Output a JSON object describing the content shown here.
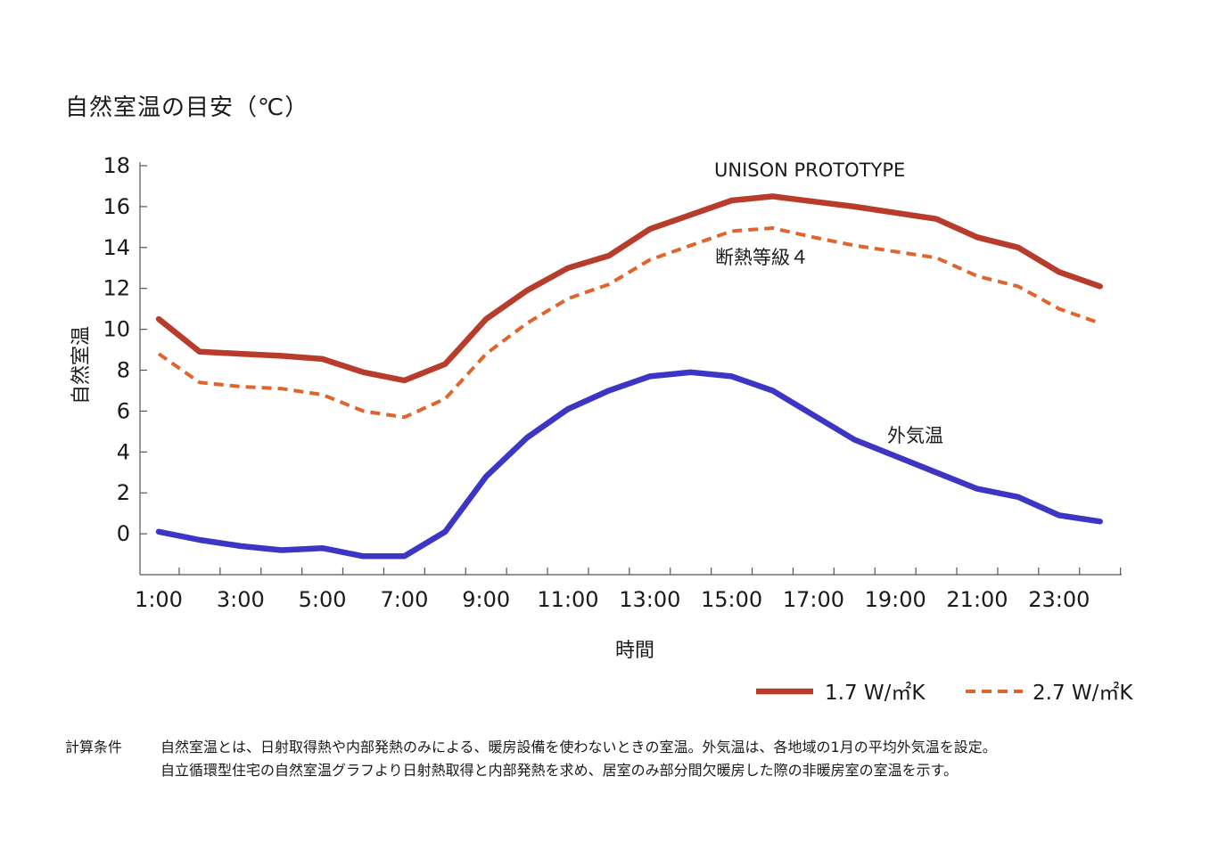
{
  "chart_data": {
    "type": "line",
    "title": "自然室温の目安（℃）",
    "ylabel": "自然室温",
    "xlabel": "時間",
    "ylim": [
      -2,
      18
    ],
    "yticks": [
      18,
      16,
      14,
      12,
      10,
      8,
      6,
      4,
      2,
      0
    ],
    "x": [
      "1:00",
      "2:00",
      "3:00",
      "4:00",
      "5:00",
      "6:00",
      "7:00",
      "8:00",
      "9:00",
      "10:00",
      "11:00",
      "12:00",
      "13:00",
      "14:00",
      "15:00",
      "16:00",
      "17:00",
      "18:00",
      "19:00",
      "20:00",
      "21:00",
      "22:00",
      "23:00",
      "24:00"
    ],
    "xtick_labels": [
      "1:00",
      "3:00",
      "5:00",
      "7:00",
      "9:00",
      "11:00",
      "13:00",
      "15:00",
      "17:00",
      "19:00",
      "21:00",
      "23:00"
    ],
    "series": [
      {
        "name": "1.7 W/㎡K",
        "annotation": "UNISON PROTOTYPE",
        "color": "#b83c2c",
        "style": "solid",
        "values": [
          10.5,
          8.9,
          8.8,
          8.7,
          8.55,
          7.9,
          7.5,
          8.3,
          10.5,
          11.9,
          13.0,
          13.6,
          14.9,
          15.6,
          16.3,
          16.5,
          16.25,
          16.0,
          15.7,
          15.4,
          14.5,
          14.0,
          12.8,
          12.1
        ]
      },
      {
        "name": "2.7 W/㎡K",
        "annotation": "断熱等級４",
        "color": "#e0642c",
        "style": "dashed",
        "values": [
          8.8,
          7.4,
          7.2,
          7.1,
          6.8,
          6.0,
          5.7,
          6.6,
          8.8,
          10.3,
          11.5,
          12.2,
          13.4,
          14.1,
          14.8,
          14.95,
          14.5,
          14.1,
          13.8,
          13.5,
          12.6,
          12.1,
          11.0,
          10.3
        ]
      },
      {
        "annotation": "外気温",
        "color": "#3d36c4",
        "style": "solid",
        "values": [
          0.1,
          -0.3,
          -0.6,
          -0.8,
          -0.7,
          -1.1,
          -1.1,
          0.1,
          2.8,
          4.7,
          6.1,
          7.0,
          7.7,
          7.9,
          7.7,
          7.0,
          5.8,
          4.6,
          3.8,
          3.0,
          2.2,
          1.8,
          0.9,
          0.6
        ]
      }
    ],
    "legend": "bottom-right",
    "grid": false
  },
  "notes": {
    "label": "計算条件",
    "lines": [
      "自然室温とは、日射取得熱や内部発熱のみによる、暖房設備を使わないときの室温。外気温は、各地域の1月の平均外気温を設定。",
      "自立循環型住宅の自然室温グラフより日射熱取得と内部発熱を求め、居室のみ部分間欠暖房した際の非暖房室の室温を示す。"
    ]
  }
}
